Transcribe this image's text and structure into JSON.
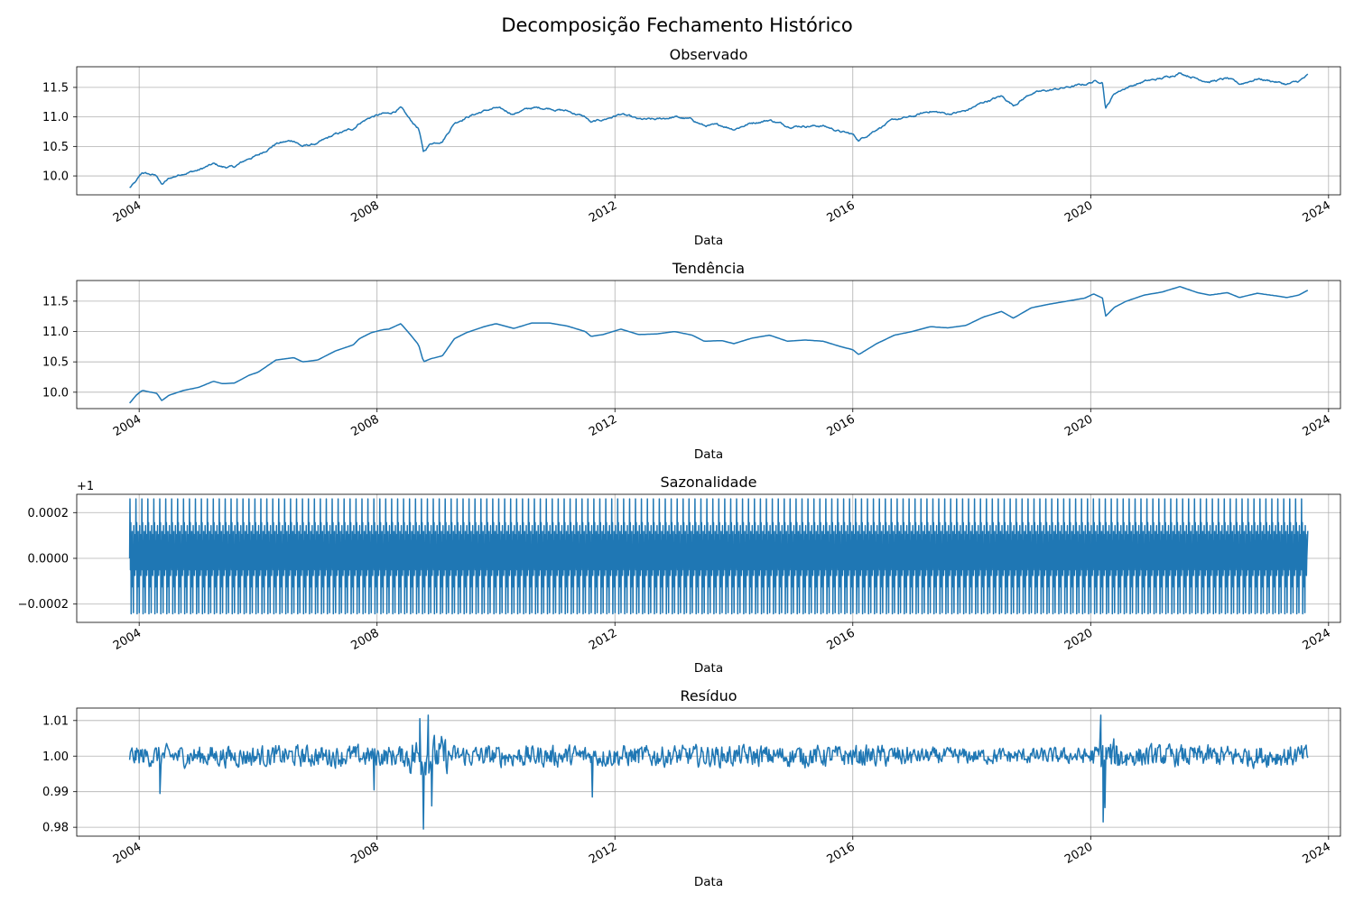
{
  "figure": {
    "title": "Decomposição Fechamento Histórico"
  },
  "colors": {
    "line": "#1f77b4",
    "grid": "#b0b0b0",
    "axis": "#000000"
  },
  "chart_data": [
    {
      "type": "line",
      "title": "Observado",
      "xlabel": "Data",
      "ylabel": "",
      "xlim": [
        2002.95,
        2024.2
      ],
      "ylim": [
        9.68,
        11.85
      ],
      "xticks": [
        2004,
        2008,
        2012,
        2016,
        2020,
        2024
      ],
      "xtick_labels": [
        "2004",
        "2008",
        "2012",
        "2016",
        "2020",
        "2024"
      ],
      "yticks": [
        10.0,
        10.5,
        11.0,
        11.5
      ],
      "ytick_labels": [
        "10.0",
        "10.5",
        "11.0",
        "11.5"
      ],
      "offset_label": "",
      "grid": true,
      "noise": 0.025,
      "x": [
        2003.84,
        2003.95,
        2004.05,
        2004.3,
        2004.38,
        2004.5,
        2004.75,
        2005.0,
        2005.25,
        2005.4,
        2005.6,
        2005.85,
        2006.0,
        2006.3,
        2006.6,
        2006.75,
        2007.0,
        2007.3,
        2007.6,
        2007.7,
        2007.9,
        2008.1,
        2008.2,
        2008.4,
        2008.55,
        2008.7,
        2008.78,
        2008.9,
        2009.1,
        2009.3,
        2009.5,
        2009.8,
        2010.0,
        2010.3,
        2010.4,
        2010.6,
        2010.9,
        2011.2,
        2011.5,
        2011.6,
        2011.8,
        2012.1,
        2012.4,
        2012.7,
        2013.0,
        2013.3,
        2013.5,
        2013.8,
        2014.0,
        2014.3,
        2014.6,
        2014.9,
        2015.2,
        2015.5,
        2015.8,
        2016.0,
        2016.1,
        2016.4,
        2016.7,
        2017.0,
        2017.3,
        2017.6,
        2017.9,
        2018.2,
        2018.5,
        2018.7,
        2019.0,
        2019.3,
        2019.6,
        2019.9,
        2020.05,
        2020.2,
        2020.25,
        2020.4,
        2020.6,
        2020.9,
        2021.2,
        2021.5,
        2021.8,
        2022.0,
        2022.3,
        2022.5,
        2022.8,
        2023.1,
        2023.3,
        2023.5,
        2023.65
      ],
      "y": [
        9.8,
        9.9,
        10.05,
        10.0,
        9.85,
        9.95,
        10.05,
        10.1,
        10.2,
        10.15,
        10.15,
        10.3,
        10.35,
        10.55,
        10.6,
        10.5,
        10.55,
        10.7,
        10.8,
        10.9,
        11.0,
        11.05,
        11.05,
        11.15,
        10.95,
        10.8,
        10.4,
        10.55,
        10.6,
        10.9,
        11.0,
        11.1,
        11.15,
        11.05,
        11.1,
        11.15,
        11.15,
        11.1,
        11.0,
        10.9,
        10.95,
        11.05,
        10.95,
        10.95,
        11.0,
        10.95,
        10.85,
        10.85,
        10.8,
        10.9,
        10.95,
        10.85,
        10.85,
        10.85,
        10.75,
        10.7,
        10.6,
        10.8,
        10.95,
        11.0,
        11.1,
        11.05,
        11.1,
        11.25,
        11.35,
        11.2,
        11.4,
        11.45,
        11.5,
        11.55,
        11.6,
        11.6,
        11.15,
        11.4,
        11.5,
        11.6,
        11.65,
        11.75,
        11.65,
        11.6,
        11.65,
        11.55,
        11.65,
        11.6,
        11.55,
        11.6,
        11.7
      ]
    },
    {
      "type": "line",
      "title": "Tendência",
      "xlabel": "Data",
      "ylabel": "",
      "xlim": [
        2002.95,
        2024.2
      ],
      "ylim": [
        9.73,
        11.84
      ],
      "xticks": [
        2004,
        2008,
        2012,
        2016,
        2020,
        2024
      ],
      "xtick_labels": [
        "2004",
        "2008",
        "2012",
        "2016",
        "2020",
        "2024"
      ],
      "yticks": [
        10.0,
        10.5,
        11.0,
        11.5
      ],
      "ytick_labels": [
        "10.0",
        "10.5",
        "11.0",
        "11.5"
      ],
      "offset_label": "",
      "grid": true,
      "noise": 0,
      "x": [
        2003.84,
        2003.95,
        2004.05,
        2004.3,
        2004.38,
        2004.5,
        2004.75,
        2005.0,
        2005.25,
        2005.4,
        2005.6,
        2005.85,
        2006.0,
        2006.3,
        2006.6,
        2006.75,
        2007.0,
        2007.3,
        2007.6,
        2007.7,
        2007.9,
        2008.1,
        2008.2,
        2008.4,
        2008.55,
        2008.7,
        2008.78,
        2008.9,
        2009.1,
        2009.3,
        2009.5,
        2009.8,
        2010.0,
        2010.3,
        2010.4,
        2010.6,
        2010.9,
        2011.2,
        2011.5,
        2011.6,
        2011.8,
        2012.1,
        2012.4,
        2012.7,
        2013.0,
        2013.3,
        2013.5,
        2013.8,
        2014.0,
        2014.3,
        2014.6,
        2014.9,
        2015.2,
        2015.5,
        2015.8,
        2016.0,
        2016.1,
        2016.4,
        2016.7,
        2017.0,
        2017.3,
        2017.6,
        2017.9,
        2018.2,
        2018.5,
        2018.7,
        2019.0,
        2019.3,
        2019.6,
        2019.9,
        2020.05,
        2020.2,
        2020.25,
        2020.4,
        2020.6,
        2020.9,
        2021.2,
        2021.5,
        2021.8,
        2022.0,
        2022.3,
        2022.5,
        2022.8,
        2023.1,
        2023.3,
        2023.5,
        2023.65
      ],
      "y": [
        9.82,
        9.95,
        10.03,
        9.98,
        9.86,
        9.95,
        10.03,
        10.08,
        10.18,
        10.14,
        10.15,
        10.28,
        10.33,
        10.53,
        10.57,
        10.5,
        10.53,
        10.68,
        10.78,
        10.88,
        10.98,
        11.03,
        11.04,
        11.13,
        10.96,
        10.78,
        10.5,
        10.55,
        10.6,
        10.88,
        10.98,
        11.08,
        11.13,
        11.05,
        11.08,
        11.14,
        11.14,
        11.09,
        11.0,
        10.92,
        10.95,
        11.04,
        10.95,
        10.96,
        11.0,
        10.94,
        10.84,
        10.85,
        10.8,
        10.89,
        10.94,
        10.84,
        10.86,
        10.84,
        10.75,
        10.7,
        10.62,
        10.8,
        10.94,
        11.0,
        11.08,
        11.06,
        11.1,
        11.24,
        11.33,
        11.22,
        11.39,
        11.45,
        11.5,
        11.55,
        11.62,
        11.55,
        11.25,
        11.4,
        11.5,
        11.6,
        11.65,
        11.74,
        11.64,
        11.6,
        11.64,
        11.56,
        11.63,
        11.59,
        11.56,
        11.6,
        11.68
      ]
    },
    {
      "type": "line",
      "title": "Sazonalidade",
      "xlabel": "Data",
      "ylabel": "",
      "xlim": [
        2002.95,
        2024.2
      ],
      "ylim": [
        -0.00028,
        0.00028
      ],
      "xticks": [
        2004,
        2008,
        2012,
        2016,
        2020,
        2024
      ],
      "xtick_labels": [
        "2004",
        "2008",
        "2012",
        "2016",
        "2020",
        "2024"
      ],
      "yticks": [
        -0.0002,
        0.0,
        0.0002
      ],
      "ytick_labels": [
        "−0.0002",
        "0.0000",
        "0.0002"
      ],
      "offset_label": "+1",
      "grid": true,
      "period_years": 0.1,
      "x_start": 2003.84,
      "x_end": 2023.65,
      "y_max": 0.00026,
      "y_min": -0.00025
    },
    {
      "type": "line",
      "title": "Resíduo",
      "xlabel": "Data",
      "ylabel": "",
      "xlim": [
        2002.95,
        2024.2
      ],
      "ylim": [
        0.9775,
        1.0135
      ],
      "xticks": [
        2004,
        2008,
        2012,
        2016,
        2020,
        2024
      ],
      "xtick_labels": [
        "2004",
        "2008",
        "2012",
        "2016",
        "2020",
        "2024"
      ],
      "yticks": [
        0.98,
        0.99,
        1.0,
        1.01
      ],
      "ytick_labels": [
        "0.98",
        "0.99",
        "1.00",
        "1.01"
      ],
      "offset_label": "",
      "grid": true,
      "baseline": 1.0,
      "x_start": 2003.84,
      "x_end": 2023.65,
      "base_amplitude": 0.0035,
      "spikes": [
        {
          "x": 2004.35,
          "y": 0.9895
        },
        {
          "x": 2007.95,
          "y": 0.9905
        },
        {
          "x": 2008.72,
          "y": 1.0105
        },
        {
          "x": 2008.78,
          "y": 0.9795
        },
        {
          "x": 2008.86,
          "y": 1.0115
        },
        {
          "x": 2008.92,
          "y": 0.986
        },
        {
          "x": 2011.62,
          "y": 0.9885
        },
        {
          "x": 2020.17,
          "y": 1.0115
        },
        {
          "x": 2020.21,
          "y": 0.9815
        },
        {
          "x": 2020.24,
          "y": 0.9855
        }
      ]
    }
  ]
}
